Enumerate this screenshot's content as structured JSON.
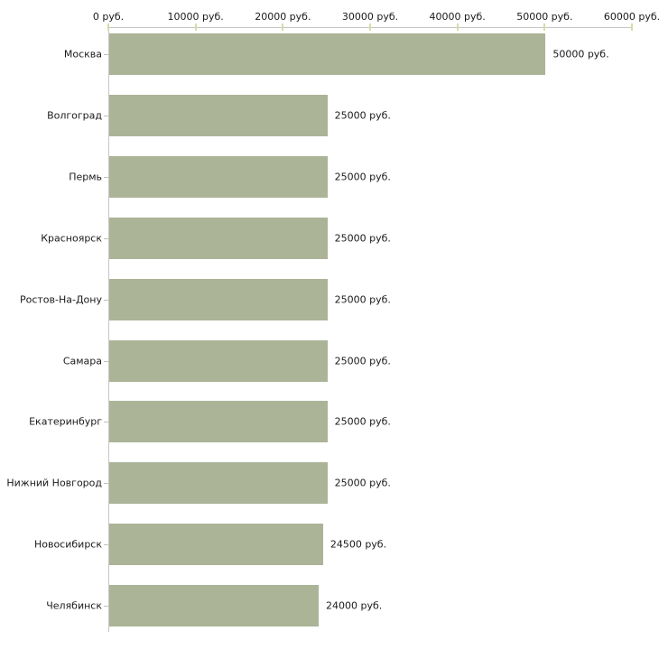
{
  "chart_data": {
    "type": "bar",
    "orientation": "horizontal",
    "title": "",
    "xlabel": "",
    "ylabel": "",
    "categories": [
      "Москва",
      "Волгоград",
      "Пермь",
      "Красноярск",
      "Ростов-На-Дону",
      "Самара",
      "Екатеринбург",
      "Нижний Новгород",
      "Новосибирск",
      "Челябинск"
    ],
    "values": [
      50000,
      25000,
      25000,
      25000,
      25000,
      25000,
      25000,
      25000,
      24500,
      24000
    ],
    "value_labels": [
      "50000 руб.",
      "25000 руб.",
      "25000 руб.",
      "25000 руб.",
      "25000 руб.",
      "25000 руб.",
      "25000 руб.",
      "25000 руб.",
      "24500 руб.",
      "24000 руб."
    ],
    "x_axis": {
      "min": 0,
      "max": 60000,
      "ticks": [
        0,
        10000,
        20000,
        30000,
        40000,
        50000,
        60000
      ],
      "tick_labels": [
        "0 руб.",
        "10000 руб.",
        "20000 руб.",
        "30000 руб.",
        "40000 руб.",
        "50000 руб.",
        "60000 руб."
      ]
    },
    "legend": null,
    "grid": false,
    "colors": {
      "bar": "#abb497",
      "axis_line": "#c6c6c6",
      "x_tick": "#d8dbaa",
      "category_tick": "#c5c1ae",
      "text": "#1a1a1a",
      "background": "#ffffff"
    }
  }
}
